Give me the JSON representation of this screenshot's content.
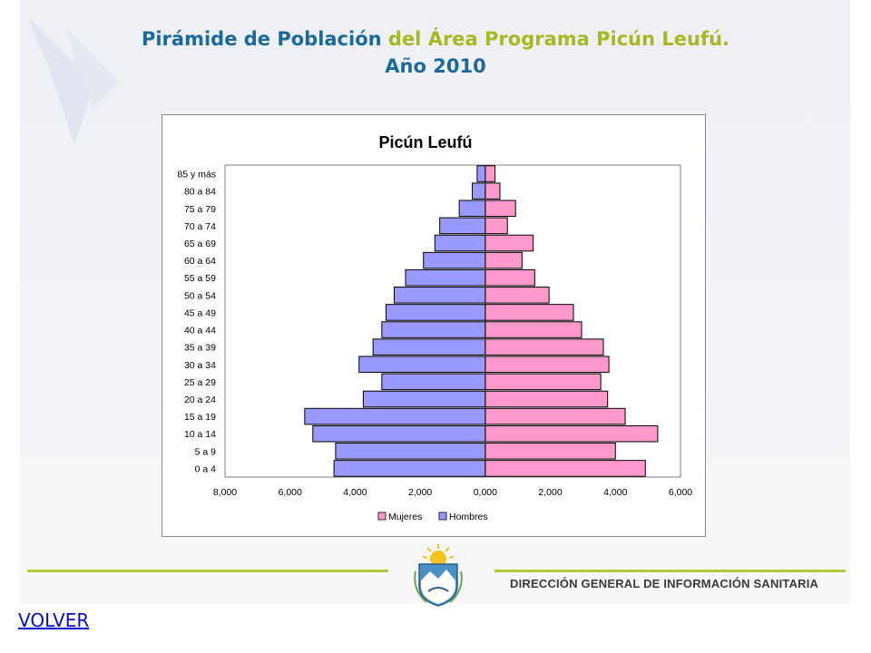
{
  "header": {
    "title_part1": "Pirámide de Población",
    "title_part2": "del Área Programa Picún Leufú.",
    "title_line2": "Año 2010"
  },
  "footer": {
    "org_name": "DIRECCIÓN GENERAL DE INFORMACIÓN SANITARIA",
    "back_link": "VOLVER"
  },
  "colors": {
    "title_blue": "#1b6a9e",
    "title_green": "#a8b820",
    "mujeres": "#ff99cc",
    "hombres": "#9999ff",
    "footer_line": "#b6c83a"
  },
  "chart_data": {
    "type": "bar",
    "orientation": "horizontal",
    "title": "Picún Leufú",
    "categories": [
      "85 y más",
      "80 a 84",
      "75 a 79",
      "70 a 74",
      "65 a 69",
      "60 a 64",
      "55 a 59",
      "50 a 54",
      "45 a 49",
      "40 a 44",
      "35 a 39",
      "30 a 34",
      "25 a 29",
      "20 a 24",
      "15 a 19",
      "10 a 14",
      "5 a 9",
      "0 a 4"
    ],
    "series": [
      {
        "name": "Mujeres",
        "values": [
          0.3,
          0.45,
          0.93,
          0.68,
          1.47,
          1.13,
          1.52,
          1.96,
          2.71,
          2.96,
          3.63,
          3.8,
          3.55,
          3.76,
          4.3,
          5.3,
          4.0,
          4.92
        ]
      },
      {
        "name": "Hombres",
        "values": [
          -0.25,
          -0.4,
          -0.8,
          -1.4,
          -1.55,
          -1.9,
          -2.45,
          -2.8,
          -3.05,
          -3.18,
          -3.45,
          -3.88,
          -3.18,
          -3.75,
          -5.55,
          -5.3,
          -4.6,
          -4.65
        ]
      }
    ],
    "xlim": [
      -8,
      6
    ],
    "x_tick_labels": [
      "8,000",
      "6,000",
      "4,000",
      "2,000",
      "0,000",
      "2,000",
      "4,000",
      "6,000"
    ],
    "x_tick_values": [
      -8,
      -6,
      -4,
      -2,
      0,
      2,
      4,
      6
    ],
    "grid": false,
    "legend_position": "bottom"
  }
}
